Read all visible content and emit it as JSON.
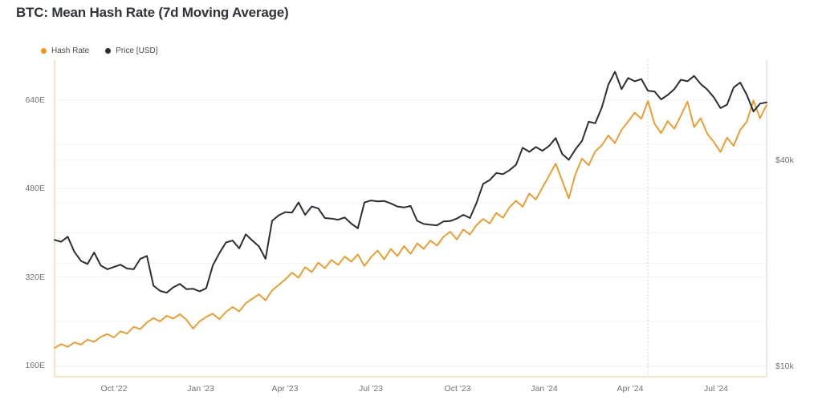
{
  "chart_data": {
    "type": "line",
    "title": "BTC: Mean Hash Rate (7d Moving Average)",
    "legend": [
      {
        "label": "Hash Rate",
        "color": "#F7931A"
      },
      {
        "label": "Price [USD]",
        "color": "#2B2E33"
      }
    ],
    "x_axis": {
      "ticks": [
        {
          "date": "2022-10-01",
          "label": "Oct '22"
        },
        {
          "date": "2023-01-01",
          "label": "Jan '23"
        },
        {
          "date": "2023-04-01",
          "label": "Apr '23"
        },
        {
          "date": "2023-07-01",
          "label": "Jul '23"
        },
        {
          "date": "2023-10-01",
          "label": "Oct '23"
        },
        {
          "date": "2024-01-01",
          "label": "Jan '24"
        },
        {
          "date": "2024-04-01",
          "label": "Apr '24"
        },
        {
          "date": "2024-07-01",
          "label": "Jul '24"
        }
      ]
    },
    "left_axis": {
      "unit": "EH/s",
      "scale": "linear",
      "min": 140,
      "max": 712,
      "ticks": [
        {
          "value": 160,
          "label": "160E"
        },
        {
          "value": 320,
          "label": "320E"
        },
        {
          "value": 480,
          "label": "480E"
        },
        {
          "value": 640,
          "label": "640E"
        }
      ],
      "grid": [
        160,
        240,
        320,
        400,
        480,
        560,
        640
      ]
    },
    "right_axis": {
      "unit": "USD",
      "scale": "log",
      "min": 9320,
      "max": 78400,
      "ticks": [
        {
          "value": 10000,
          "label": "$10k"
        },
        {
          "value": 40000,
          "label": "$40k"
        }
      ],
      "grid": [
        10000,
        20000,
        30000,
        40000
      ]
    },
    "annotations": [
      {
        "type": "vline",
        "date": "2024-04-20",
        "style": "dotted"
      }
    ],
    "dates": [
      "2022-07-30",
      "2022-08-06",
      "2022-08-13",
      "2022-08-20",
      "2022-08-27",
      "2022-09-03",
      "2022-09-10",
      "2022-09-17",
      "2022-09-24",
      "2022-10-01",
      "2022-10-08",
      "2022-10-15",
      "2022-10-22",
      "2022-10-29",
      "2022-11-05",
      "2022-11-12",
      "2022-11-19",
      "2022-11-26",
      "2022-12-03",
      "2022-12-10",
      "2022-12-17",
      "2022-12-24",
      "2022-12-31",
      "2023-01-07",
      "2023-01-14",
      "2023-01-21",
      "2023-01-28",
      "2023-02-04",
      "2023-02-11",
      "2023-02-18",
      "2023-02-25",
      "2023-03-04",
      "2023-03-11",
      "2023-03-18",
      "2023-03-25",
      "2023-04-01",
      "2023-04-08",
      "2023-04-15",
      "2023-04-22",
      "2023-04-29",
      "2023-05-06",
      "2023-05-13",
      "2023-05-20",
      "2023-05-27",
      "2023-06-03",
      "2023-06-10",
      "2023-06-17",
      "2023-06-24",
      "2023-07-01",
      "2023-07-08",
      "2023-07-15",
      "2023-07-22",
      "2023-07-29",
      "2023-08-05",
      "2023-08-12",
      "2023-08-19",
      "2023-08-26",
      "2023-09-02",
      "2023-09-09",
      "2023-09-16",
      "2023-09-23",
      "2023-09-30",
      "2023-10-07",
      "2023-10-14",
      "2023-10-21",
      "2023-10-28",
      "2023-11-04",
      "2023-11-11",
      "2023-11-18",
      "2023-11-25",
      "2023-12-02",
      "2023-12-09",
      "2023-12-16",
      "2023-12-23",
      "2023-12-30",
      "2024-01-06",
      "2024-01-13",
      "2024-01-20",
      "2024-01-27",
      "2024-02-03",
      "2024-02-10",
      "2024-02-17",
      "2024-02-24",
      "2024-03-02",
      "2024-03-09",
      "2024-03-16",
      "2024-03-23",
      "2024-03-30",
      "2024-04-06",
      "2024-04-13",
      "2024-04-20",
      "2024-04-27",
      "2024-05-04",
      "2024-05-11",
      "2024-05-18",
      "2024-05-25",
      "2024-06-01",
      "2024-06-08",
      "2024-06-15",
      "2024-06-22",
      "2024-06-29",
      "2024-07-06",
      "2024-07-13",
      "2024-07-20",
      "2024-07-27",
      "2024-08-03",
      "2024-08-10",
      "2024-08-17",
      "2024-08-24"
    ],
    "series": [
      {
        "name": "Hash Rate",
        "axis": "left",
        "color": "#F7931A",
        "width": 1.8,
        "values": [
          192,
          199,
          194,
          202,
          198,
          207,
          203,
          212,
          217,
          211,
          222,
          218,
          230,
          226,
          238,
          246,
          240,
          250,
          245,
          253,
          243,
          227,
          240,
          248,
          254,
          244,
          257,
          266,
          258,
          273,
          281,
          289,
          278,
          296,
          306,
          316,
          328,
          319,
          338,
          329,
          346,
          336,
          351,
          342,
          357,
          348,
          361,
          340,
          356,
          368,
          352,
          371,
          358,
          376,
          362,
          381,
          371,
          386,
          377,
          393,
          402,
          388,
          406,
          397,
          414,
          425,
          417,
          436,
          427,
          446,
          458,
          447,
          471,
          460,
          482,
          503,
          525,
          494,
          462,
          506,
          534,
          522,
          547,
          558,
          576,
          562,
          586,
          601,
          617,
          606,
          638,
          597,
          580,
          602,
          588,
          612,
          637,
          591,
          607,
          579,
          564,
          546,
          572,
          557,
          586,
          601,
          639,
          607,
          631
        ]
      },
      {
        "name": "Price [USD]",
        "axis": "right",
        "color": "#2B2E33",
        "width": 2,
        "values": [
          23400,
          23100,
          23900,
          21600,
          20300,
          19900,
          21500,
          19700,
          19200,
          19500,
          19800,
          19300,
          19200,
          20600,
          21000,
          17200,
          16600,
          16400,
          17000,
          17400,
          16800,
          16850,
          16550,
          16900,
          19700,
          21400,
          23000,
          23300,
          22100,
          24300,
          23300,
          22400,
          20600,
          26600,
          27600,
          28200,
          28100,
          30100,
          27700,
          29300,
          28900,
          27100,
          27000,
          26800,
          27200,
          26100,
          25300,
          30100,
          30500,
          30300,
          30400,
          29900,
          29300,
          29100,
          29400,
          26600,
          26050,
          25900,
          25800,
          26500,
          26550,
          27000,
          27700,
          27100,
          30000,
          34100,
          35000,
          36700,
          36400,
          37400,
          38800,
          43500,
          42300,
          43700,
          42600,
          44000,
          46400,
          41700,
          40100,
          43000,
          45500,
          51800,
          51300,
          57000,
          66500,
          72500,
          64500,
          69500,
          68000,
          69000,
          63800,
          63500,
          60200,
          62000,
          64500,
          68700,
          68000,
          70500,
          66800,
          64300,
          61000,
          56800,
          58100,
          65200,
          67400,
          62000,
          55500,
          58500,
          59000
        ]
      }
    ],
    "style": {
      "spine_left_bottom_color": "rgba(247,147,26,0.55)",
      "spine_right_color": "#d2d2d5",
      "gridline_color": "#f3f3f3",
      "vline_color": "#c7c7c7"
    }
  }
}
